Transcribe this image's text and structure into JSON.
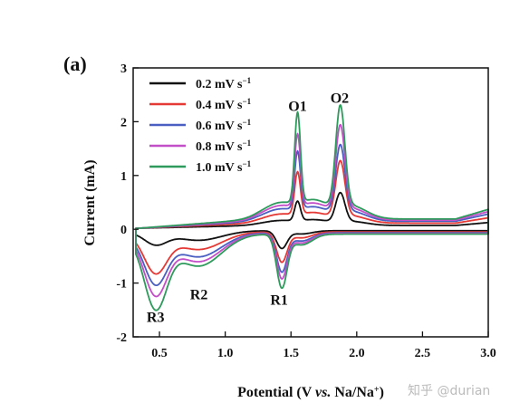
{
  "panel_label": "(a)",
  "watermark": "知乎 @durian",
  "chart_data": {
    "type": "line",
    "title": "",
    "xlabel_parts": [
      "Potential (V ",
      "vs.",
      " Na/Na",
      "+",
      ")"
    ],
    "ylabel": "Current (mA)",
    "xlim": [
      0.3,
      3.0
    ],
    "ylim": [
      -2,
      3
    ],
    "xticks": [
      0.5,
      1.0,
      1.5,
      2.0,
      2.5,
      3.0
    ],
    "xtick_labels": [
      "0.5",
      "1.0",
      "1.5",
      "2.0",
      "2.5",
      "3.0"
    ],
    "yticks": [
      -2,
      -1,
      0,
      1,
      2,
      3
    ],
    "ytick_labels": [
      "-2",
      "-1",
      "0",
      "1",
      "2",
      "3"
    ],
    "legend_placement": "top-left",
    "legend_unit": "mV s",
    "legend_exp": "−1",
    "annotations": [
      {
        "text": "O1",
        "x": 1.55,
        "y": 2.2
      },
      {
        "text": "O2",
        "x": 1.87,
        "y": 2.35
      },
      {
        "text": "R1",
        "x": 1.41,
        "y": -1.4
      },
      {
        "text": "R2",
        "x": 0.8,
        "y": -1.3
      },
      {
        "text": "R3",
        "x": 0.47,
        "y": -1.72
      }
    ],
    "series": [
      {
        "name": "0.2",
        "color": "#111111",
        "s": 0.3,
        "o1": 0.45,
        "o2": 0.62,
        "r1": -0.35,
        "r3": -0.28
      },
      {
        "name": "0.4",
        "color": "#e53935",
        "s": 0.55,
        "o1": 0.95,
        "o2": 1.18,
        "r1": -0.6,
        "r3": -0.8
      },
      {
        "name": "0.6",
        "color": "#4a5fc1",
        "s": 0.75,
        "o1": 1.3,
        "o2": 1.45,
        "r1": -0.78,
        "r3": -1.0
      },
      {
        "name": "0.8",
        "color": "#c24fc7",
        "s": 0.88,
        "o1": 1.6,
        "o2": 1.8,
        "r1": -0.9,
        "r3": -1.2
      },
      {
        "name": "1.0",
        "color": "#2e9a5c",
        "s": 1.0,
        "o1": 1.98,
        "o2": 2.15,
        "r1": -1.07,
        "r3": -1.45
      }
    ]
  }
}
